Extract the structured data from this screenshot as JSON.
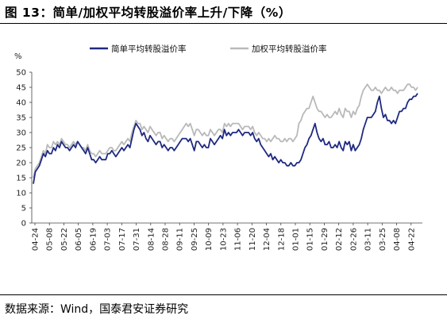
{
  "title": "图 13：简单/加权平均转股溢价率上升/下降（%）",
  "source": "数据来源：Wind，国泰君安证券研究",
  "colors": {
    "series_1": "#1f2a80",
    "series_2": "#b9b9b9"
  },
  "chart_data": {
    "type": "line",
    "title": "",
    "xlabel": "",
    "ylabel": "%",
    "ylim": [
      0,
      50
    ],
    "yticks": [
      0,
      5,
      10,
      15,
      20,
      25,
      30,
      35,
      40,
      45,
      50
    ],
    "grid": false,
    "legend": "top-center",
    "x_tick_labels": [
      "04-24",
      "05-08",
      "05-22",
      "06-05",
      "06-19",
      "07-03",
      "07-17",
      "07-31",
      "08-14",
      "08-28",
      "09-11",
      "09-25",
      "10-09",
      "10-23",
      "11-06",
      "11-20",
      "12-04",
      "12-18",
      "01-01",
      "01-15",
      "01-29",
      "02-12",
      "02-26",
      "03-11",
      "03-25",
      "04-08",
      "04-22"
    ],
    "series": [
      {
        "name": "简单平均转股溢价率",
        "values": [
          13,
          17,
          18,
          19,
          21,
          23,
          22,
          24,
          23,
          23,
          25,
          24,
          26,
          25,
          27,
          26,
          25,
          25,
          24,
          25,
          26,
          25,
          27,
          26,
          25,
          24,
          23,
          25,
          23,
          21,
          21,
          20,
          21,
          22,
          21,
          21,
          21,
          23,
          23,
          24,
          23,
          22,
          23,
          24,
          25,
          24,
          25,
          26,
          25,
          28,
          31,
          33,
          32,
          31,
          29,
          30,
          28,
          27,
          29,
          28,
          27,
          26,
          27,
          27,
          25,
          26,
          25,
          24,
          25,
          25,
          24,
          25,
          26,
          27,
          28,
          28,
          28,
          27,
          28,
          26,
          24,
          27,
          27,
          26,
          25,
          26,
          25,
          25,
          28,
          27,
          26,
          27,
          28,
          29,
          28,
          31,
          29,
          30,
          29,
          30,
          30,
          30,
          31,
          30,
          29,
          30,
          30,
          30,
          29,
          30,
          28,
          27,
          28,
          26,
          25,
          24,
          23,
          22,
          23,
          21,
          22,
          21,
          20,
          21,
          20,
          20,
          19,
          19,
          20,
          19,
          19,
          20,
          20,
          21,
          23,
          25,
          26,
          28,
          29,
          31,
          33,
          30,
          28,
          27,
          28,
          26,
          26,
          27,
          25,
          25,
          26,
          25,
          27,
          25,
          24,
          27,
          26,
          27,
          24,
          26,
          24,
          25,
          26,
          28,
          31,
          33,
          35,
          35,
          35,
          36,
          37,
          40,
          42,
          38,
          35,
          36,
          34,
          34,
          33,
          34,
          33,
          35,
          37,
          37,
          38,
          38,
          40,
          41,
          41,
          42,
          42,
          43
        ]
      },
      {
        "name": "加权平均转股溢价率",
        "values": [
          15,
          18,
          19,
          20,
          22,
          24,
          23,
          26,
          25,
          25,
          27,
          26,
          27,
          26,
          28,
          27,
          26,
          26,
          25,
          26,
          27,
          26,
          27,
          26,
          25,
          25,
          24,
          26,
          24,
          23,
          23,
          22,
          23,
          24,
          23,
          23,
          23,
          24,
          25,
          25,
          24,
          24,
          25,
          26,
          27,
          26,
          27,
          28,
          27,
          30,
          32,
          34,
          33,
          33,
          31,
          32,
          31,
          30,
          32,
          31,
          30,
          29,
          30,
          30,
          28,
          29,
          28,
          27,
          28,
          28,
          27,
          28,
          29,
          30,
          31,
          32,
          33,
          32,
          33,
          31,
          29,
          31,
          31,
          30,
          29,
          30,
          29,
          29,
          31,
          30,
          29,
          30,
          31,
          31,
          30,
          33,
          32,
          33,
          32,
          33,
          33,
          33,
          33,
          32,
          31,
          32,
          32,
          32,
          31,
          32,
          30,
          29,
          30,
          29,
          28,
          28,
          27,
          28,
          27,
          28,
          29,
          28,
          28,
          27,
          27,
          28,
          27,
          28,
          28,
          27,
          28,
          29,
          33,
          34,
          36,
          37,
          38,
          38,
          40,
          42,
          40,
          38,
          37,
          37,
          36,
          35,
          36,
          35,
          35,
          36,
          37,
          36,
          38,
          36,
          35,
          38,
          37,
          37,
          35,
          37,
          36,
          38,
          39,
          42,
          44,
          45,
          46,
          45,
          44,
          44,
          45,
          44,
          44,
          43,
          44,
          45,
          44,
          44,
          45,
          44,
          44,
          43,
          44,
          44,
          44,
          45,
          46,
          46,
          45,
          45,
          44,
          45
        ]
      }
    ]
  }
}
